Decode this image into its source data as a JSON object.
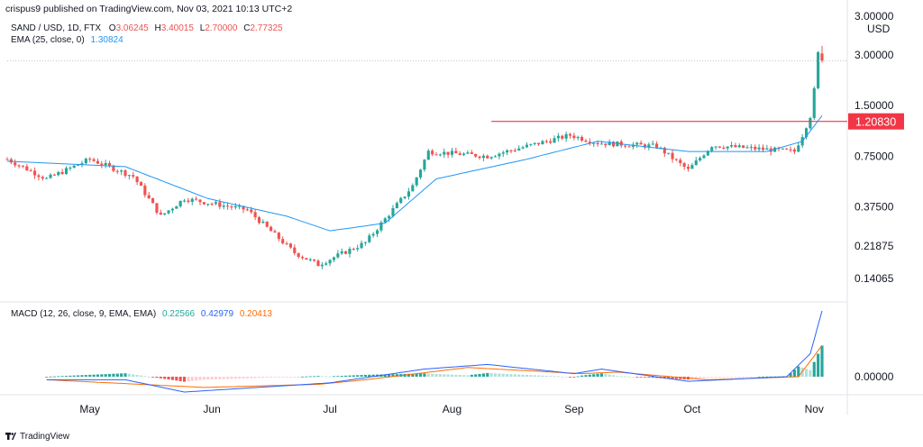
{
  "header": "crispus9 published on TradingView.com, Nov 03, 2021 10:13 UTC+2",
  "legend": {
    "symbol": "SAND / USD, 1D, FTX",
    "o_label": "O",
    "o_value": "3.06245",
    "h_label": "H",
    "h_value": "3.40015",
    "l_label": "L",
    "l_value": "2.70000",
    "c_label": "C",
    "c_value": "2.77325",
    "ema_label": "EMA (25, close, 0)",
    "ema_value": "1.30824",
    "macd_label": "MACD (12, 26, close, 9, EMA, EMA)",
    "macd_hist": "0.22566",
    "macd_line": "0.42979",
    "macd_signal": "0.20413"
  },
  "price_axis": {
    "unit": "USD",
    "top_partial": "3.00000",
    "ticks": [
      "3.00000",
      "1.50000",
      "0.75000",
      "0.37500",
      "0.21875",
      "0.14065"
    ],
    "current_price": "1.20830",
    "macd_tick": "0.00000"
  },
  "time_axis": [
    "May",
    "Jun",
    "Jul",
    "Aug",
    "Sep",
    "Oct",
    "Nov"
  ],
  "footer": "TradingView",
  "colors": {
    "up": "#26a69a",
    "down": "#ef5350",
    "ema": "#2196f3",
    "level": "#f23645",
    "macd": "#2962ff",
    "signal": "#ff6d00"
  },
  "chart_data": {
    "type": "candlestick",
    "title": "SAND / USD, 1D, FTX",
    "y_scale": "log",
    "yticks": [
      0.14065,
      0.21875,
      0.375,
      0.75,
      1.5,
      3.0
    ],
    "resistance_level": 1.2083,
    "ohlc_last": {
      "open": 3.06245,
      "high": 3.40015,
      "low": 2.7,
      "close": 2.77325
    },
    "anchors": [
      {
        "date": "2021-04-10",
        "close": 0.72
      },
      {
        "date": "2021-04-20",
        "close": 0.55
      },
      {
        "date": "2021-05-01",
        "close": 0.72
      },
      {
        "date": "2021-05-12",
        "close": 0.57
      },
      {
        "date": "2021-05-19",
        "close": 0.33
      },
      {
        "date": "2021-05-25",
        "close": 0.42
      },
      {
        "date": "2021-06-10",
        "close": 0.36
      },
      {
        "date": "2021-06-22",
        "close": 0.2
      },
      {
        "date": "2021-06-28",
        "close": 0.17
      },
      {
        "date": "2021-07-10",
        "close": 0.23
      },
      {
        "date": "2021-07-22",
        "close": 0.5
      },
      {
        "date": "2021-07-26",
        "close": 0.8
      },
      {
        "date": "2021-08-10",
        "close": 0.75
      },
      {
        "date": "2021-08-31",
        "close": 1.0
      },
      {
        "date": "2021-09-07",
        "close": 0.9
      },
      {
        "date": "2021-09-22",
        "close": 0.86
      },
      {
        "date": "2021-09-30",
        "close": 0.62
      },
      {
        "date": "2021-10-06",
        "close": 0.87
      },
      {
        "date": "2021-10-27",
        "close": 0.8
      },
      {
        "date": "2021-10-29",
        "close": 1.0
      },
      {
        "date": "2021-10-31",
        "close": 1.3
      },
      {
        "date": "2021-11-01",
        "close": 1.85
      },
      {
        "date": "2021-11-02",
        "close": 3.06
      },
      {
        "date": "2021-11-03",
        "close": 2.77
      }
    ],
    "ema_anchors": [
      {
        "date": "2021-04-10",
        "value": 0.7
      },
      {
        "date": "2021-05-10",
        "value": 0.65
      },
      {
        "date": "2021-05-31",
        "value": 0.42
      },
      {
        "date": "2021-06-20",
        "value": 0.33
      },
      {
        "date": "2021-07-01",
        "value": 0.27
      },
      {
        "date": "2021-07-15",
        "value": 0.3
      },
      {
        "date": "2021-07-28",
        "value": 0.55
      },
      {
        "date": "2021-08-20",
        "value": 0.72
      },
      {
        "date": "2021-09-07",
        "value": 0.92
      },
      {
        "date": "2021-09-30",
        "value": 0.8
      },
      {
        "date": "2021-10-20",
        "value": 0.8
      },
      {
        "date": "2021-10-29",
        "value": 0.92
      },
      {
        "date": "2021-11-03",
        "value": 1.30824
      }
    ],
    "macd": {
      "yticks": [
        0.0
      ],
      "last": {
        "histogram": 0.22566,
        "macd": 0.42979,
        "signal": 0.20413
      },
      "macd_anchors": [
        {
          "date": "2021-04-20",
          "value": -0.02
        },
        {
          "date": "2021-05-10",
          "value": -0.02
        },
        {
          "date": "2021-05-25",
          "value": -0.1
        },
        {
          "date": "2021-06-25",
          "value": -0.05
        },
        {
          "date": "2021-07-01",
          "value": -0.04
        },
        {
          "date": "2021-07-25",
          "value": 0.05
        },
        {
          "date": "2021-08-10",
          "value": 0.08
        },
        {
          "date": "2021-09-01",
          "value": 0.02
        },
        {
          "date": "2021-09-08",
          "value": 0.05
        },
        {
          "date": "2021-09-30",
          "value": -0.03
        },
        {
          "date": "2021-10-25",
          "value": 0.0
        },
        {
          "date": "2021-10-31",
          "value": 0.15
        },
        {
          "date": "2021-11-03",
          "value": 0.42979
        }
      ],
      "signal_anchors": [
        {
          "date": "2021-04-20",
          "value": -0.02
        },
        {
          "date": "2021-05-30",
          "value": -0.07
        },
        {
          "date": "2021-06-28",
          "value": -0.05
        },
        {
          "date": "2021-07-10",
          "value": -0.02
        },
        {
          "date": "2021-08-05",
          "value": 0.06
        },
        {
          "date": "2021-09-03",
          "value": 0.02
        },
        {
          "date": "2021-09-12",
          "value": 0.03
        },
        {
          "date": "2021-10-05",
          "value": -0.02
        },
        {
          "date": "2021-10-28",
          "value": 0.0
        },
        {
          "date": "2021-11-03",
          "value": 0.20413
        }
      ]
    },
    "x_labels": [
      "May",
      "Jun",
      "Jul",
      "Aug",
      "Sep",
      "Oct",
      "Nov"
    ],
    "x_label_dates": [
      "2021-05-01",
      "2021-06-01",
      "2021-07-01",
      "2021-08-01",
      "2021-09-01",
      "2021-10-01",
      "2021-11-01"
    ]
  }
}
